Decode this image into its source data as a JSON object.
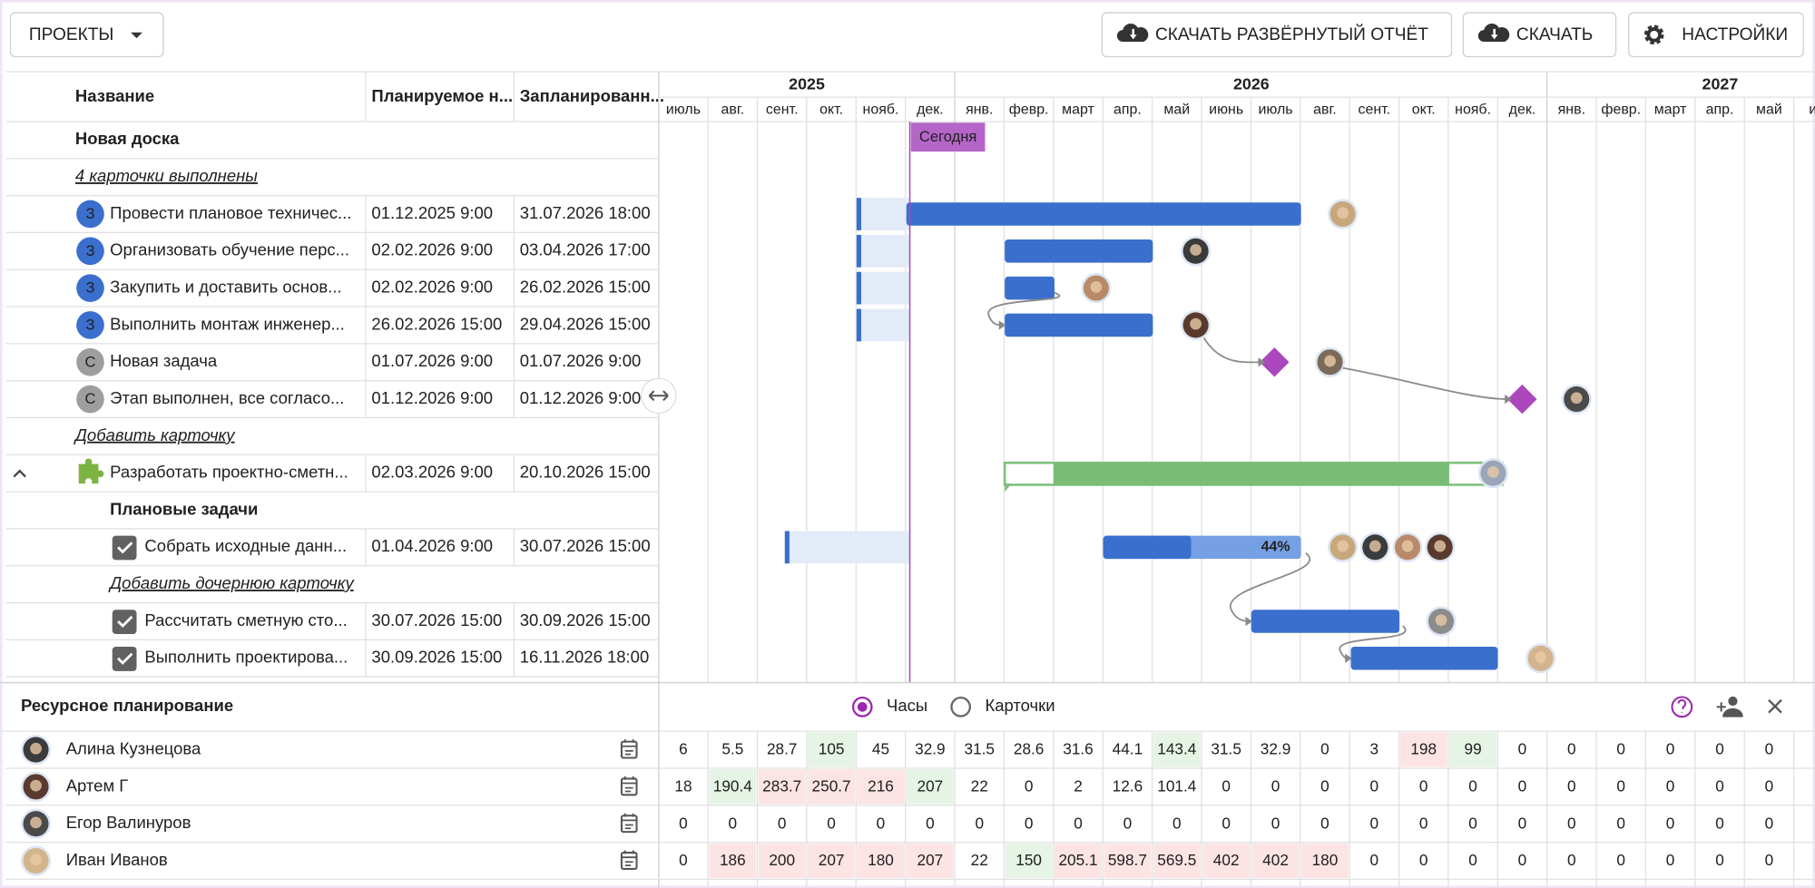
{
  "toolbar": {
    "projects": "ПРОЕКТЫ",
    "buttons": [
      "СКАЧАТЬ РАЗВЁРНУТЫЙ ОТЧЁТ",
      "СКАЧАТЬ",
      "НАСТРОЙКИ"
    ]
  },
  "table": {
    "columns": [
      "Название",
      "Планируемое н...",
      "Запланированн..."
    ]
  },
  "timeline": {
    "years": [
      "2025",
      "2026",
      "2027"
    ],
    "months": [
      "июль",
      "авг.",
      "сент.",
      "окт.",
      "нояб.",
      "дек.",
      "янв.",
      "февр.",
      "март",
      "апр.",
      "май",
      "июнь",
      "июль",
      "авг.",
      "сент.",
      "окт.",
      "нояб.",
      "дек.",
      "янв.",
      "февр.",
      "март",
      "апр.",
      "май",
      "ию"
    ],
    "today": "Сегодня"
  },
  "board": {
    "title": "Новая доска",
    "done_link": "4 карточки выполнены",
    "tasks": [
      {
        "badge": "З",
        "name": "Провести плановое техничес...",
        "start": "01.12.2025 9:00",
        "end": "31.07.2026 18:00"
      },
      {
        "badge": "З",
        "name": "Организовать обучение перс...",
        "start": "02.02.2026 9:00",
        "end": "03.04.2026 17:00"
      },
      {
        "badge": "З",
        "name": "Закупить и доставить основ...",
        "start": "02.02.2026 9:00",
        "end": "26.02.2026 15:00"
      },
      {
        "badge": "З",
        "name": "Выполнить монтаж инженер...",
        "start": "26.02.2026 15:00",
        "end": "29.04.2026 15:00"
      },
      {
        "badge": "С",
        "name": "Новая задача",
        "start": "01.07.2026 9:00",
        "end": "01.07.2026 9:00"
      },
      {
        "badge": "С",
        "name": "Этап выполнен, все согласо...",
        "start": "01.12.2026 9:00",
        "end": "01.12.2026 9:00"
      }
    ],
    "add_link": "Добавить карточку"
  },
  "epic": {
    "name": "Разработать проектно-сметн...",
    "start": "02.03.2026 9:00",
    "end": "20.10.2026 15:00",
    "group": "Плановые задачи",
    "subtasks": [
      {
        "name": "Собрать исходные данн...",
        "start": "01.04.2026 9:00",
        "end": "30.07.2026 15:00",
        "progress": "44%"
      },
      {
        "name": "Рассчитать сметную сто...",
        "start": "30.07.2026 15:00",
        "end": "30.09.2026 15:00"
      },
      {
        "name": "Выполнить проектирова...",
        "start": "30.09.2026 15:00",
        "end": "16.11.2026 18:00"
      }
    ],
    "add_link": "Добавить дочернюю карточку"
  },
  "resources": {
    "title": "Ресурсное планирование",
    "modes": [
      "Часы",
      "Карточки"
    ],
    "people": [
      {
        "name": "Алина Кузнецова",
        "values": [
          6,
          5.5,
          28.7,
          105,
          45,
          32.9,
          31.5,
          28.6,
          31.6,
          44.1,
          143.4,
          31.5,
          32.9,
          0,
          3,
          198,
          99,
          0,
          0,
          0,
          0,
          0,
          0
        ],
        "tones": [
          null,
          null,
          null,
          "green",
          null,
          null,
          null,
          null,
          null,
          null,
          "green",
          null,
          null,
          null,
          null,
          "red",
          "green",
          null,
          null,
          null,
          null,
          null,
          null
        ]
      },
      {
        "name": "Артем Г",
        "values": [
          18,
          190.4,
          283.7,
          250.7,
          216,
          207,
          22,
          0,
          2,
          12.6,
          101.4,
          0,
          0,
          0,
          0,
          0,
          0,
          0,
          0,
          0,
          0,
          0,
          0
        ],
        "tones": [
          null,
          "green",
          "red",
          "red",
          "red",
          "green",
          null,
          null,
          null,
          null,
          null,
          null,
          null,
          null,
          null,
          null,
          null,
          null,
          null,
          null,
          null,
          null,
          null
        ]
      },
      {
        "name": "Егор Валинуров",
        "values": [
          0,
          0,
          0,
          0,
          0,
          0,
          0,
          0,
          0,
          0,
          0,
          0,
          0,
          0,
          0,
          0,
          0,
          0,
          0,
          0,
          0,
          0,
          0
        ],
        "tones": [
          null,
          null,
          null,
          null,
          null,
          null,
          null,
          null,
          null,
          null,
          null,
          null,
          null,
          null,
          null,
          null,
          null,
          null,
          null,
          null,
          null,
          null,
          null
        ]
      },
      {
        "name": "Иван Иванов",
        "values": [
          0,
          186,
          200,
          207,
          180,
          207,
          22,
          150,
          205.1,
          598.7,
          569.5,
          402,
          402,
          180,
          0,
          0,
          0,
          0,
          0,
          0,
          0,
          0,
          0
        ],
        "tones": [
          null,
          "red",
          "red",
          "red",
          "red",
          "red",
          null,
          "green",
          "red",
          "red",
          "red",
          "red",
          "red",
          "red",
          null,
          null,
          null,
          null,
          null,
          null,
          null,
          null,
          null
        ]
      }
    ]
  }
}
